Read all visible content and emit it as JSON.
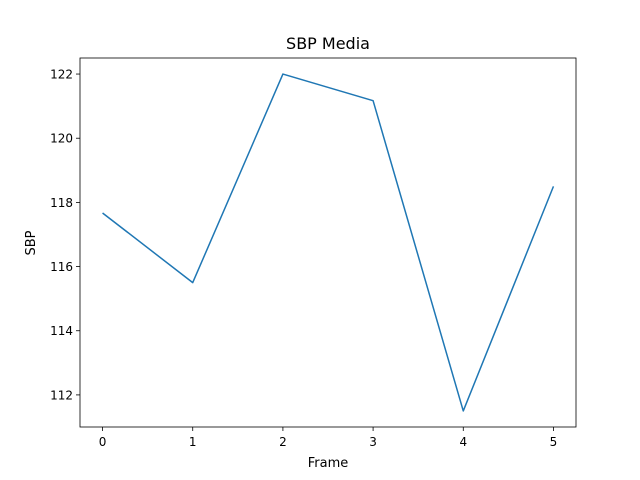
{
  "chart_data": {
    "type": "line",
    "title": "SBP Media",
    "xlabel": "Frame",
    "ylabel": "SBP",
    "x": [
      0,
      1,
      2,
      3,
      4,
      5
    ],
    "series": [
      {
        "values": [
          117.67,
          115.5,
          122.0,
          121.17,
          111.5,
          118.5
        ],
        "color": "#1f77b4"
      }
    ],
    "xlim": [
      -0.25,
      5.25
    ],
    "ylim": [
      111.0,
      122.5
    ],
    "xticks": [
      0,
      1,
      2,
      3,
      4,
      5
    ],
    "yticks": [
      112,
      114,
      116,
      118,
      120,
      122
    ],
    "grid": false,
    "legend": "none"
  }
}
